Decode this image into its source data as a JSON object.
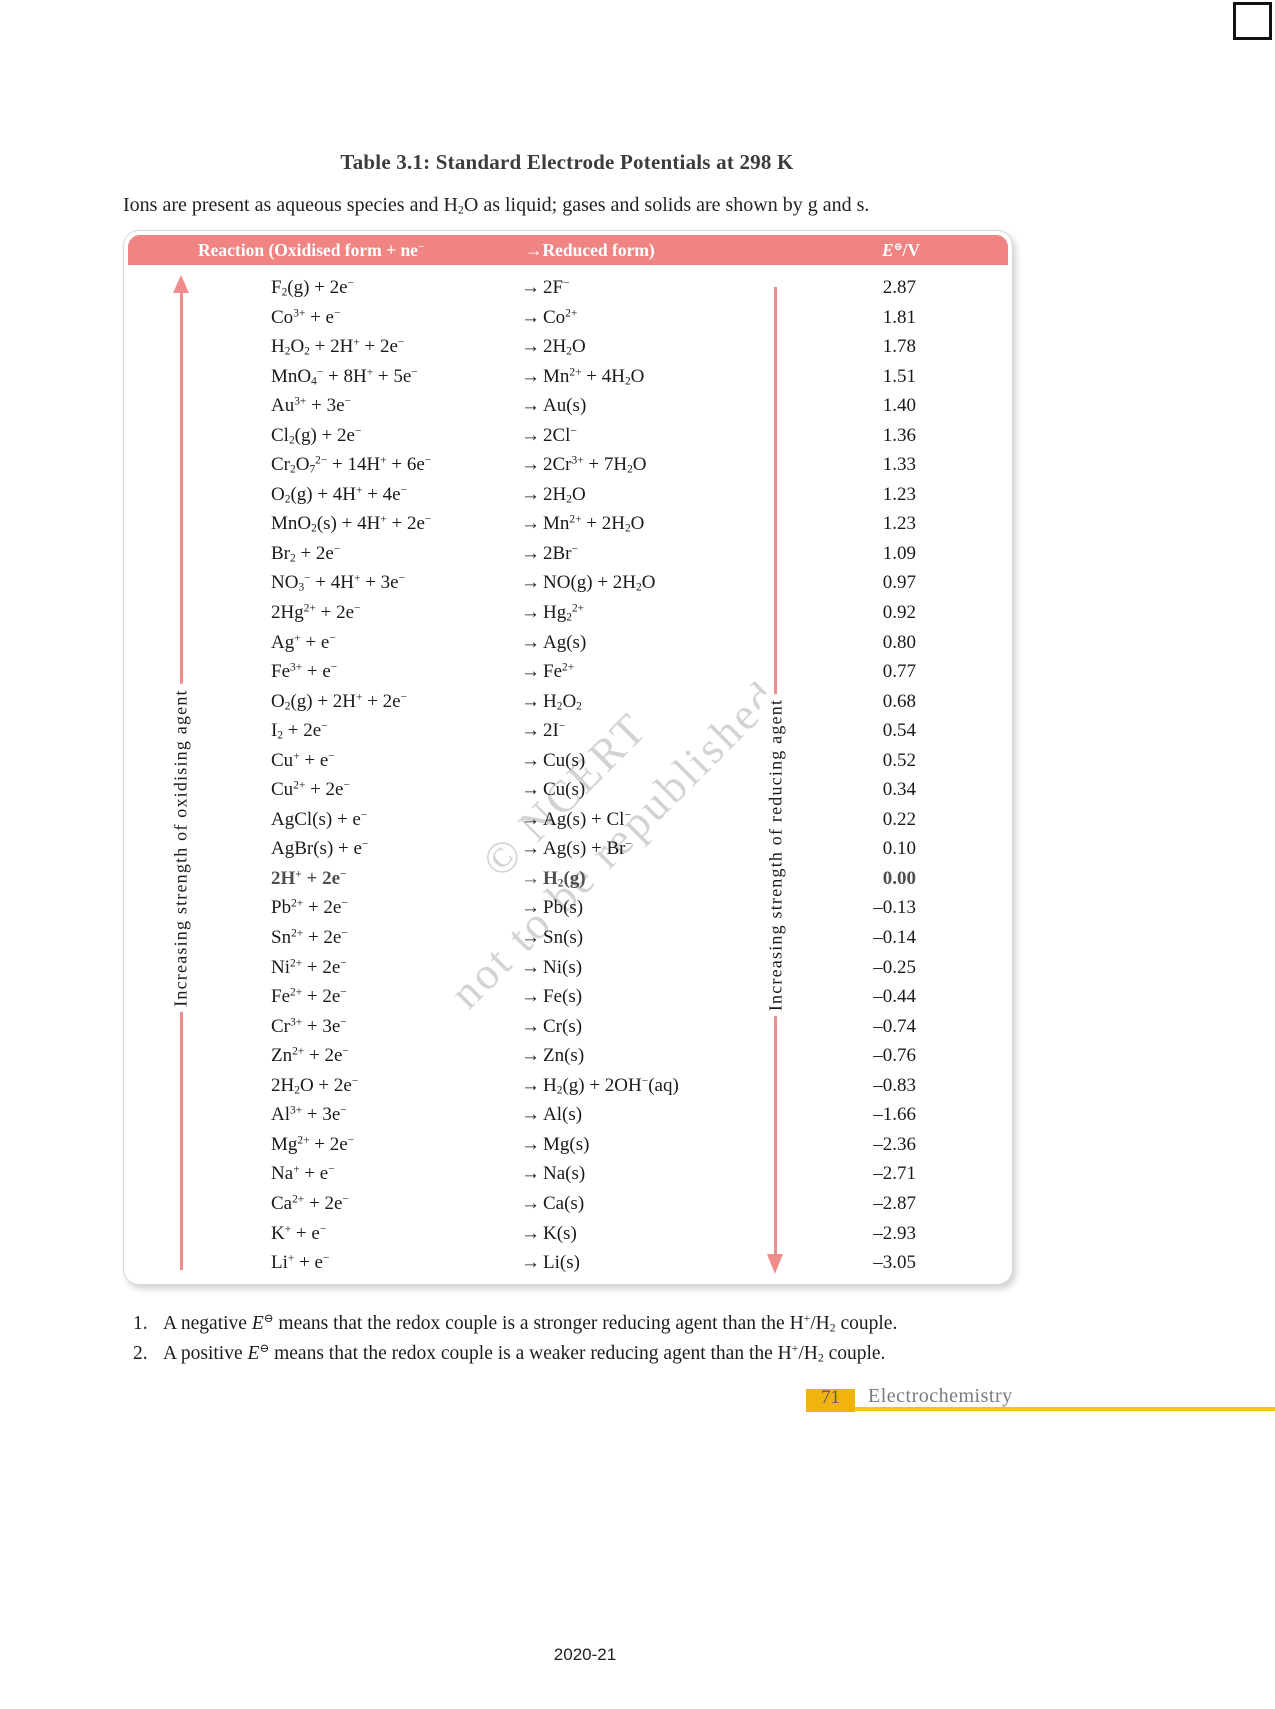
{
  "heading": {
    "title": "Table 3.1: Standard Electrode Potentials at 298 K",
    "subtitle": "Ions are present as aqueous species and H_{2}O as liquid; gases and solids are shown by g and s."
  },
  "table": {
    "header": {
      "reaction_label": "Reaction (Oxidised form + ne^{−}",
      "arrow": "→",
      "reduced_label": "Reduced form)",
      "potential_label": "*E*^{⊖}/V"
    },
    "row_arrow": "→",
    "left_axis_label": "Increasing strength of oxidising agent",
    "right_axis_label": "Increasing strength of reducing agent",
    "rows": [
      {
        "oxidised": "F_{2}(g) + 2e^{−}",
        "reduced": "2F^{−}",
        "potential": "2.87",
        "bold": false
      },
      {
        "oxidised": "Co^{3+} + e^{−}",
        "reduced": "Co^{2+}",
        "potential": "1.81",
        "bold": false
      },
      {
        "oxidised": "H_{2}O_{2} + 2H^{+} + 2e^{−}",
        "reduced": "2H_{2}O",
        "potential": "1.78",
        "bold": false
      },
      {
        "oxidised": "MnO_{4}^{−} + 8H^{+} + 5e^{−}",
        "reduced": "Mn^{2+} + 4H_{2}O",
        "potential": "1.51",
        "bold": false
      },
      {
        "oxidised": "Au^{3+} + 3e^{−}",
        "reduced": "Au(s)",
        "potential": "1.40",
        "bold": false
      },
      {
        "oxidised": "Cl_{2}(g) + 2e^{−}",
        "reduced": "2Cl^{−}",
        "potential": "1.36",
        "bold": false
      },
      {
        "oxidised": "Cr_{2}O_{7}^{2−} + 14H^{+} + 6e^{−}",
        "reduced": "2Cr^{3+} + 7H_{2}O",
        "potential": "1.33",
        "bold": false
      },
      {
        "oxidised": "O_{2}(g) + 4H^{+} + 4e^{−}",
        "reduced": "2H_{2}O",
        "potential": "1.23",
        "bold": false
      },
      {
        "oxidised": "MnO_{2}(s) + 4H^{+} + 2e^{−}",
        "reduced": "Mn^{2+} + 2H_{2}O",
        "potential": "1.23",
        "bold": false
      },
      {
        "oxidised": "Br_{2} + 2e^{−}",
        "reduced": "2Br^{−}",
        "potential": "1.09",
        "bold": false
      },
      {
        "oxidised": "NO_{3}^{−} + 4H^{+} + 3e^{−}",
        "reduced": "NO(g) + 2H_{2}O",
        "potential": "0.97",
        "bold": false
      },
      {
        "oxidised": "2Hg^{2+} + 2e^{−}",
        "reduced": "Hg_{2}^{2+}",
        "potential": "0.92",
        "bold": false
      },
      {
        "oxidised": "Ag^{+} + e^{−}",
        "reduced": "Ag(s)",
        "potential": "0.80",
        "bold": false
      },
      {
        "oxidised": "Fe^{3+} + e^{−}",
        "reduced": "Fe^{2+}",
        "potential": "0.77",
        "bold": false
      },
      {
        "oxidised": "O_{2}(g) + 2H^{+} + 2e^{−}",
        "reduced": "H_{2}O_{2}",
        "potential": "0.68",
        "bold": false
      },
      {
        "oxidised": "I_{2} + 2e^{−}",
        "reduced": "2I^{−}",
        "potential": "0.54",
        "bold": false
      },
      {
        "oxidised": "Cu^{+} + e^{−}",
        "reduced": "Cu(s)",
        "potential": "0.52",
        "bold": false
      },
      {
        "oxidised": "Cu^{2+} + 2e^{−}",
        "reduced": "Cu(s)",
        "potential": "0.34",
        "bold": false
      },
      {
        "oxidised": "AgCl(s) + e^{−}",
        "reduced": "Ag(s) + Cl^{−}",
        "potential": "0.22",
        "bold": false
      },
      {
        "oxidised": "AgBr(s) + e^{−}",
        "reduced": "Ag(s) + Br^{−}",
        "potential": "0.10",
        "bold": false
      },
      {
        "oxidised": "2H^{+} + 2e^{−}",
        "reduced": "H_{2}(g)",
        "potential": "0.00",
        "bold": true
      },
      {
        "oxidised": "Pb^{2+} + 2e^{−}",
        "reduced": "Pb(s)",
        "potential": "–0.13",
        "bold": false
      },
      {
        "oxidised": "Sn^{2+} + 2e^{−}",
        "reduced": "Sn(s)",
        "potential": "–0.14",
        "bold": false
      },
      {
        "oxidised": "Ni^{2+} + 2e^{−}",
        "reduced": "Ni(s)",
        "potential": "–0.25",
        "bold": false
      },
      {
        "oxidised": "Fe^{2+} + 2e^{−}",
        "reduced": "Fe(s)",
        "potential": "–0.44",
        "bold": false
      },
      {
        "oxidised": "Cr^{3+} + 3e^{−}",
        "reduced": "Cr(s)",
        "potential": "–0.74",
        "bold": false
      },
      {
        "oxidised": "Zn^{2+} + 2e^{−}",
        "reduced": "Zn(s)",
        "potential": "–0.76",
        "bold": false
      },
      {
        "oxidised": "2H_{2}O + 2e^{−}",
        "reduced": "H_{2}(g) + 2OH^{−}(aq)",
        "potential": "–0.83",
        "bold": false
      },
      {
        "oxidised": "Al^{3+} + 3e^{−}",
        "reduced": "Al(s)",
        "potential": "–1.66",
        "bold": false
      },
      {
        "oxidised": "Mg^{2+} + 2e^{−}",
        "reduced": "Mg(s)",
        "potential": "–2.36",
        "bold": false
      },
      {
        "oxidised": "Na^{+} + e^{−}",
        "reduced": "Na(s)",
        "potential": "–2.71",
        "bold": false
      },
      {
        "oxidised": "Ca^{2+} + 2e^{−}",
        "reduced": "Ca(s)",
        "potential": "–2.87",
        "bold": false
      },
      {
        "oxidised": "K^{+} + e^{−}",
        "reduced": "K(s)",
        "potential": "–2.93",
        "bold": false
      },
      {
        "oxidised": "Li^{+} + e^{−}",
        "reduced": "Li(s)",
        "potential": "–3.05",
        "bold": false
      }
    ]
  },
  "watermark": {
    "line1": "© NCERT",
    "line2": "not to be republished"
  },
  "notes": [
    {
      "num": "1.",
      "text": "A negative *E*^{⊖} means that the redox couple is a stronger reducing agent than the H^{+}/H_{2}  couple."
    },
    {
      "num": "2.",
      "text": "A positive *E*^{⊖} means that the redox couple is a weaker reducing agent than the H^{+}/H_{2}  couple."
    }
  ],
  "footer": {
    "page_number": "71",
    "chapter": "Electrochemistry",
    "year_code": "2020-21"
  },
  "colors": {
    "header_bar": "#F08482",
    "arrow": "#F28B8B",
    "page_number_box": "#F0B310",
    "footer_rule": "#F6C513"
  }
}
